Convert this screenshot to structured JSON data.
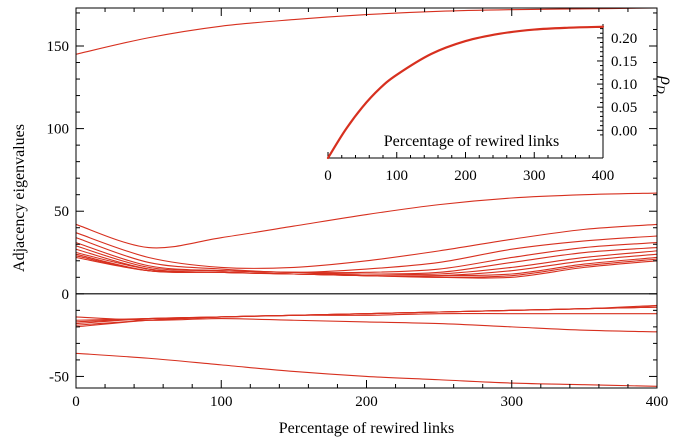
{
  "colors": {
    "curve": "#d7301f",
    "axis": "#000000"
  },
  "chart_data": [
    {
      "type": "line",
      "title": "",
      "xlabel": "Percentage of rewired links",
      "ylabel": "Adjacency eigenvalues",
      "xlim": [
        0,
        400
      ],
      "ylim": [
        -57,
        173
      ],
      "xticks": [
        0,
        100,
        200,
        300,
        400
      ],
      "yticks": [
        -50,
        0,
        50,
        100,
        150
      ],
      "x": [
        0,
        50,
        100,
        150,
        200,
        250,
        300,
        350,
        400
      ],
      "series": [
        {
          "values": [
            145,
            155,
            162,
            166,
            169,
            171,
            172,
            172.5,
            173
          ]
        },
        {
          "values": [
            42,
            28,
            34,
            41,
            48,
            54,
            58,
            60,
            61
          ]
        },
        {
          "values": [
            37,
            22,
            16,
            16,
            20,
            26,
            33,
            39,
            42
          ]
        },
        {
          "values": [
            34,
            19,
            15,
            13,
            15,
            19,
            27,
            32,
            35
          ]
        },
        {
          "values": [
            31,
            17,
            14,
            13,
            13,
            15,
            22,
            28,
            31
          ]
        },
        {
          "values": [
            29,
            16,
            14,
            13,
            12,
            13,
            19,
            25,
            28
          ]
        },
        {
          "values": [
            27,
            15,
            13,
            12,
            12,
            12,
            16,
            22,
            26
          ]
        },
        {
          "values": [
            25,
            15,
            13,
            12,
            11,
            11,
            14,
            20,
            24
          ]
        },
        {
          "values": [
            24,
            14,
            13,
            12,
            11,
            11,
            12,
            18,
            22
          ]
        },
        {
          "values": [
            23,
            14,
            13,
            12,
            11,
            10,
            11,
            17,
            21
          ]
        },
        {
          "values": [
            22,
            14,
            13,
            12,
            11,
            10,
            10,
            16,
            20
          ]
        },
        {
          "values": [
            -14,
            -16,
            -15,
            -16,
            -17,
            -18,
            -20,
            -22,
            -23
          ]
        },
        {
          "values": [
            -16,
            -15,
            -14,
            -13,
            -13,
            -12,
            -12,
            -12,
            -12
          ]
        },
        {
          "values": [
            -17,
            -15,
            -14,
            -13,
            -12,
            -11,
            -10,
            -9,
            -8
          ]
        },
        {
          "values": [
            -18,
            -15,
            -14,
            -13,
            -12,
            -11,
            -10,
            -9,
            -8
          ]
        },
        {
          "values": [
            -19,
            -16,
            -14,
            -13,
            -12,
            -11,
            -10,
            -9,
            -7
          ]
        },
        {
          "values": [
            -20,
            -16,
            -14,
            -13,
            -12,
            -11,
            -10,
            -9,
            -8
          ]
        },
        {
          "values": [
            -36,
            -39,
            -43,
            -47,
            -50,
            -52,
            -54,
            -55,
            -56
          ]
        }
      ]
    },
    {
      "type": "line",
      "title": "",
      "xlabel": "Percentage of rewired links",
      "ylabel": "ρ",
      "ylabel_sub": "D",
      "xlim": [
        0,
        400
      ],
      "ylim": [
        -0.06,
        0.23
      ],
      "xticks": [
        0,
        100,
        200,
        300,
        400
      ],
      "yticks": [
        0.0,
        0.05,
        0.1,
        0.15,
        0.2
      ],
      "ytick_labels": [
        "0.00",
        "0.05",
        "0.10",
        "0.15",
        "0.20"
      ],
      "x": [
        0,
        25,
        50,
        75,
        100,
        150,
        200,
        250,
        300,
        350,
        400
      ],
      "series": [
        {
          "values": [
            -0.06,
            0.0,
            0.05,
            0.09,
            0.12,
            0.165,
            0.193,
            0.209,
            0.218,
            0.222,
            0.224
          ]
        }
      ]
    }
  ]
}
